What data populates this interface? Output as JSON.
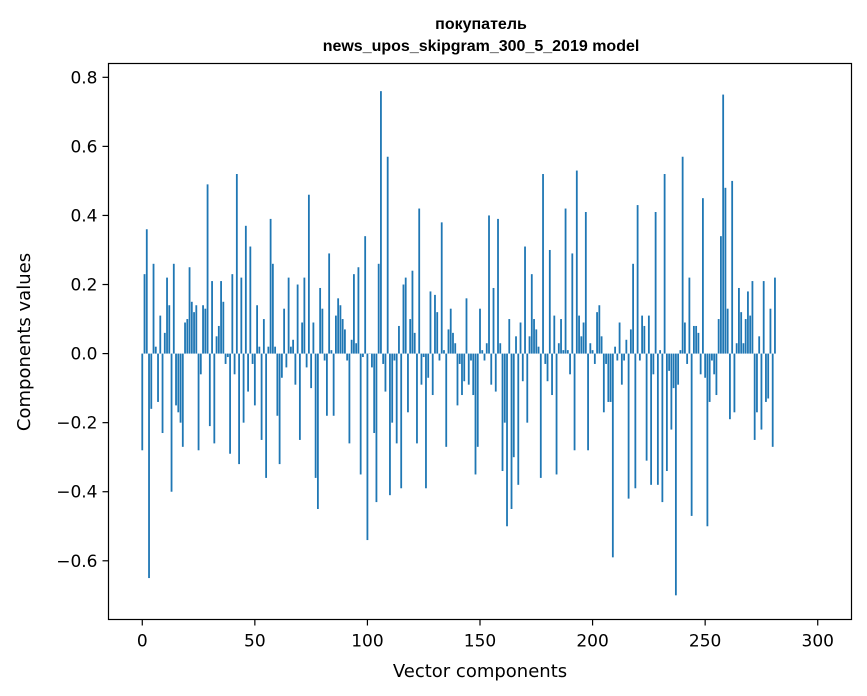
{
  "chart_data": {
    "type": "bar",
    "title_line1": "покупатель",
    "title_line2": "news_upos_skipgram_300_5_2019 model",
    "xlabel": "Vector components",
    "ylabel": "Components values",
    "xlim": [
      -15,
      315
    ],
    "ylim": [
      -0.77,
      0.84
    ],
    "x_ticks": [
      0,
      50,
      100,
      150,
      200,
      250,
      300
    ],
    "x_tick_labels": [
      "0",
      "50",
      "100",
      "150",
      "200",
      "250",
      "300"
    ],
    "y_ticks": [
      -0.6,
      -0.4,
      -0.2,
      0.0,
      0.2,
      0.4,
      0.6,
      0.8
    ],
    "y_tick_labels": [
      "−0.6",
      "−0.4",
      "−0.2",
      "0.0",
      "0.2",
      "0.4",
      "0.6",
      "0.8"
    ],
    "bar_color": "#1f77b4",
    "grid": false,
    "values": [
      -0.28,
      0.23,
      0.36,
      -0.65,
      -0.16,
      0.26,
      0.02,
      -0.14,
      0.11,
      -0.23,
      0.06,
      0.22,
      0.14,
      -0.4,
      0.26,
      -0.15,
      -0.17,
      -0.2,
      -0.27,
      0.09,
      0.1,
      0.25,
      0.15,
      0.12,
      0.14,
      -0.28,
      -0.06,
      0.14,
      0.13,
      0.49,
      -0.21,
      0.21,
      -0.26,
      0.05,
      0.08,
      0.21,
      0.15,
      -0.03,
      -0.01,
      -0.29,
      0.23,
      -0.06,
      0.52,
      -0.32,
      0.22,
      -0.2,
      0.37,
      -0.11,
      0.31,
      -0.03,
      -0.15,
      0.14,
      0.02,
      -0.25,
      0.1,
      -0.36,
      0.02,
      0.39,
      0.26,
      0.02,
      -0.18,
      -0.32,
      -0.07,
      0.13,
      -0.04,
      0.22,
      0.02,
      0.04,
      -0.09,
      0.2,
      -0.25,
      0.09,
      0.22,
      -0.04,
      0.46,
      -0.1,
      0.09,
      -0.36,
      -0.45,
      0.19,
      0.13,
      -0.02,
      -0.18,
      0.29,
      0.01,
      -0.18,
      0.11,
      0.16,
      0.14,
      0.1,
      0.07,
      -0.02,
      -0.26,
      0.04,
      0.23,
      0.03,
      0.25,
      -0.35,
      -0.01,
      0.34,
      -0.54,
      0.0,
      -0.04,
      -0.23,
      -0.43,
      0.26,
      0.76,
      -0.03,
      -0.11,
      0.57,
      -0.41,
      -0.2,
      -0.02,
      -0.26,
      0.08,
      -0.39,
      0.2,
      0.22,
      -0.17,
      0.1,
      0.24,
      0.06,
      -0.26,
      0.42,
      -0.09,
      -0.01,
      -0.39,
      -0.07,
      0.18,
      -0.12,
      0.17,
      0.12,
      -0.02,
      0.38,
      0.01,
      -0.27,
      0.07,
      0.13,
      0.06,
      0.03,
      -0.15,
      -0.03,
      -0.12,
      -0.08,
      0.16,
      -0.09,
      -0.02,
      -0.12,
      -0.35,
      -0.27,
      0.13,
      0.01,
      -0.02,
      0.03,
      0.4,
      -0.09,
      0.19,
      -0.11,
      0.39,
      0.03,
      -0.34,
      -0.2,
      -0.5,
      0.1,
      -0.45,
      -0.3,
      0.05,
      -0.38,
      0.09,
      -0.08,
      0.31,
      -0.2,
      0.05,
      0.23,
      0.1,
      0.07,
      0.02,
      -0.36,
      0.52,
      -0.03,
      -0.08,
      0.3,
      -0.12,
      0.11,
      -0.35,
      0.03,
      0.1,
      0.01,
      0.42,
      0.01,
      -0.06,
      0.29,
      -0.28,
      0.53,
      0.11,
      0.05,
      0.09,
      0.41,
      -0.28,
      0.03,
      0.01,
      -0.03,
      0.12,
      0.14,
      0.05,
      -0.17,
      -0.03,
      -0.14,
      -0.14,
      -0.59,
      0.02,
      -0.02,
      0.09,
      -0.09,
      -0.02,
      0.04,
      -0.42,
      0.07,
      0.26,
      -0.39,
      0.43,
      -0.02,
      0.11,
      0.08,
      -0.31,
      0.11,
      -0.38,
      -0.06,
      0.41,
      -0.38,
      0.01,
      -0.43,
      0.52,
      -0.34,
      -0.05,
      -0.22,
      -0.1,
      -0.7,
      -0.09,
      0.01,
      0.57,
      0.09,
      -0.03,
      0.22,
      -0.47,
      0.08,
      0.08,
      0.06,
      -0.06,
      0.45,
      -0.07,
      -0.5,
      -0.14,
      -0.02,
      -0.06,
      -0.12,
      0.1,
      0.34,
      0.75,
      0.48,
      0.13,
      -0.19,
      0.5,
      -0.17,
      0.03,
      0.19,
      0.12,
      0.03,
      0.1,
      0.18,
      0.11,
      0.21,
      -0.25,
      -0.17,
      0.05,
      -0.22,
      0.21,
      -0.14,
      -0.13,
      0.13,
      -0.27,
      0.22
    ]
  }
}
